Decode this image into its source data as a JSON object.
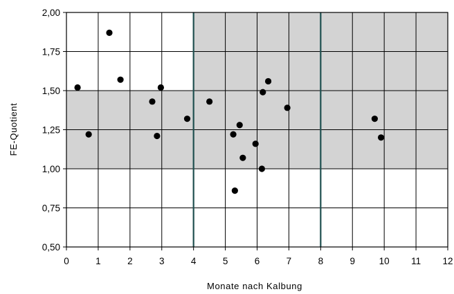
{
  "chart_data": {
    "type": "scatter",
    "xlabel": "Monate nach Kalbung",
    "ylabel": "FE-Quotient",
    "xlim": [
      0,
      12
    ],
    "ylim": [
      0.5,
      2.0
    ],
    "x_ticks": [
      0,
      1,
      2,
      3,
      4,
      5,
      6,
      7,
      8,
      9,
      10,
      11,
      12
    ],
    "x_tick_labels": [
      "0",
      "1",
      "2",
      "3",
      "4",
      "5",
      "6",
      "7",
      "8",
      "9",
      "10",
      "11",
      "12"
    ],
    "y_ticks": [
      0.5,
      0.75,
      1.0,
      1.25,
      1.5,
      1.75,
      2.0
    ],
    "y_tick_labels": [
      "0,50",
      "0,75",
      "1,00",
      "1,25",
      "1,50",
      "1,75",
      "2,00"
    ],
    "grid": true,
    "shaded_regions": [
      {
        "x_range": [
          0,
          12
        ],
        "y_range": [
          1.0,
          1.5
        ]
      },
      {
        "x_range": [
          4,
          12
        ],
        "y_range": [
          1.5,
          2.0
        ]
      }
    ],
    "emphasized_vertical_lines": [
      4,
      8
    ],
    "colors": {
      "shade": "#d3d3d3",
      "grid": "#000000",
      "emphasized_line": "#1f4f4f",
      "point": "#000000"
    },
    "points": [
      {
        "x": 0.35,
        "y": 1.52
      },
      {
        "x": 0.7,
        "y": 1.22
      },
      {
        "x": 1.35,
        "y": 1.87
      },
      {
        "x": 1.7,
        "y": 1.57
      },
      {
        "x": 2.7,
        "y": 1.43
      },
      {
        "x": 2.85,
        "y": 1.21
      },
      {
        "x": 2.97,
        "y": 1.52
      },
      {
        "x": 3.8,
        "y": 1.32
      },
      {
        "x": 4.5,
        "y": 1.43
      },
      {
        "x": 5.25,
        "y": 1.22
      },
      {
        "x": 5.3,
        "y": 0.86
      },
      {
        "x": 5.45,
        "y": 1.28
      },
      {
        "x": 5.55,
        "y": 1.07
      },
      {
        "x": 5.95,
        "y": 1.16
      },
      {
        "x": 6.15,
        "y": 1.0
      },
      {
        "x": 6.18,
        "y": 1.49
      },
      {
        "x": 6.35,
        "y": 1.56
      },
      {
        "x": 6.95,
        "y": 1.39
      },
      {
        "x": 9.7,
        "y": 1.32
      },
      {
        "x": 9.9,
        "y": 1.2
      }
    ]
  }
}
